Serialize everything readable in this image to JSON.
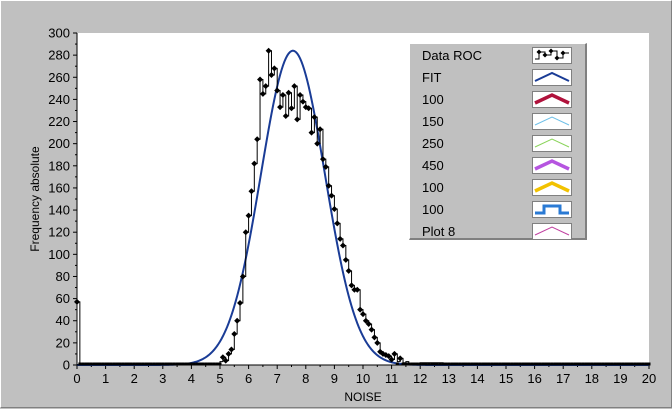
{
  "chart_data": {
    "type": "line",
    "xlabel": "NOISE",
    "ylabel": "Frequency absolute",
    "xlim": [
      0,
      20
    ],
    "ylim": [
      0,
      300
    ],
    "xticks": [
      "0",
      "1",
      "2",
      "3",
      "4",
      "5",
      "6",
      "7",
      "8",
      "9",
      "10",
      "11",
      "12",
      "13",
      "14",
      "15",
      "16",
      "17",
      "18",
      "19",
      "20"
    ],
    "yticks": [
      "0",
      "20",
      "40",
      "60",
      "80",
      "100",
      "120",
      "140",
      "160",
      "180",
      "200",
      "220",
      "240",
      "260",
      "280",
      "300"
    ],
    "grid": false,
    "legend_position": "top-right",
    "series": [
      {
        "name": "Data ROC",
        "color": "#000000",
        "style": "step-markers",
        "points": [
          [
            0.0,
            57
          ],
          [
            0.1,
            1
          ],
          [
            4.9,
            1
          ],
          [
            5.0,
            3
          ],
          [
            5.1,
            7
          ],
          [
            5.2,
            4
          ],
          [
            5.3,
            10
          ],
          [
            5.4,
            14
          ],
          [
            5.5,
            28
          ],
          [
            5.6,
            40
          ],
          [
            5.7,
            56
          ],
          [
            5.8,
            80
          ],
          [
            5.9,
            120
          ],
          [
            6.0,
            135
          ],
          [
            6.1,
            157
          ],
          [
            6.2,
            182
          ],
          [
            6.3,
            204
          ],
          [
            6.4,
            258
          ],
          [
            6.5,
            245
          ],
          [
            6.6,
            252
          ],
          [
            6.7,
            284
          ],
          [
            6.8,
            262
          ],
          [
            6.9,
            268
          ],
          [
            7.0,
            248
          ],
          [
            7.1,
            233
          ],
          [
            7.2,
            244
          ],
          [
            7.3,
            225
          ],
          [
            7.4,
            246
          ],
          [
            7.5,
            232
          ],
          [
            7.6,
            252
          ],
          [
            7.7,
            222
          ],
          [
            7.8,
            244
          ],
          [
            7.9,
            238
          ],
          [
            8.0,
            233
          ],
          [
            8.1,
            232
          ],
          [
            8.2,
            210
          ],
          [
            8.3,
            224
          ],
          [
            8.4,
            200
          ],
          [
            8.5,
            213
          ],
          [
            8.6,
            186
          ],
          [
            8.7,
            179
          ],
          [
            8.8,
            162
          ],
          [
            8.9,
            153
          ],
          [
            9.0,
            141
          ],
          [
            9.1,
            128
          ],
          [
            9.2,
            114
          ],
          [
            9.3,
            108
          ],
          [
            9.4,
            95
          ],
          [
            9.5,
            85
          ],
          [
            9.6,
            72
          ],
          [
            9.7,
            68
          ],
          [
            9.8,
            68
          ],
          [
            9.9,
            50
          ],
          [
            10.0,
            46
          ],
          [
            10.1,
            40
          ],
          [
            10.2,
            37
          ],
          [
            10.3,
            32
          ],
          [
            10.4,
            25
          ],
          [
            10.5,
            20
          ],
          [
            10.6,
            12
          ],
          [
            10.7,
            10
          ],
          [
            10.8,
            9
          ],
          [
            10.9,
            8
          ],
          [
            11.0,
            5
          ],
          [
            11.1,
            10
          ],
          [
            11.2,
            3
          ],
          [
            11.3,
            6
          ],
          [
            11.4,
            2
          ],
          [
            11.5,
            3
          ],
          [
            11.6,
            1
          ],
          [
            12.0,
            2
          ],
          [
            12.4,
            2
          ],
          [
            12.8,
            1
          ],
          [
            20.0,
            1
          ]
        ]
      },
      {
        "name": "FIT",
        "color": "#1a3c96",
        "style": "gaussian",
        "amplitude": 284,
        "mean": 7.55,
        "sigma": 1.12
      },
      {
        "name": "100",
        "color": "#b0123c",
        "style": "swatch-only"
      },
      {
        "name": "150",
        "color": "#6fc0e8",
        "style": "swatch-only"
      },
      {
        "name": "250",
        "color": "#8ad45a",
        "style": "swatch-only"
      },
      {
        "name": "450",
        "color": "#b655e0",
        "style": "swatch-only"
      },
      {
        "name": "100",
        "color": "#f2c200",
        "style": "swatch-only"
      },
      {
        "name": "100",
        "color": "#2a7ad4",
        "style": "swatch-only"
      },
      {
        "name": "Plot 8",
        "color": "#c040a0",
        "style": "swatch-only"
      }
    ]
  },
  "legend": {
    "items": [
      {
        "label": "Data ROC",
        "icon": "data-roc-swatch-icon",
        "color": "#000000"
      },
      {
        "label": "FIT",
        "icon": "fit-swatch-icon",
        "color": "#1a3c96"
      },
      {
        "label": "100",
        "icon": "thick-line-swatch-icon",
        "color": "#b0123c"
      },
      {
        "label": "150",
        "icon": "thin-line-swatch-icon",
        "color": "#6fc0e8"
      },
      {
        "label": "250",
        "icon": "thin-line-swatch-icon",
        "color": "#8ad45a"
      },
      {
        "label": "450",
        "icon": "thick-line-swatch-icon",
        "color": "#b655e0"
      },
      {
        "label": "100",
        "icon": "thick-line-swatch-icon",
        "color": "#f2c200"
      },
      {
        "label": "100",
        "icon": "square-wave-swatch-icon",
        "color": "#2a7ad4"
      },
      {
        "label": "Plot 8",
        "icon": "thin-line-swatch-icon",
        "color": "#c040a0"
      }
    ]
  }
}
